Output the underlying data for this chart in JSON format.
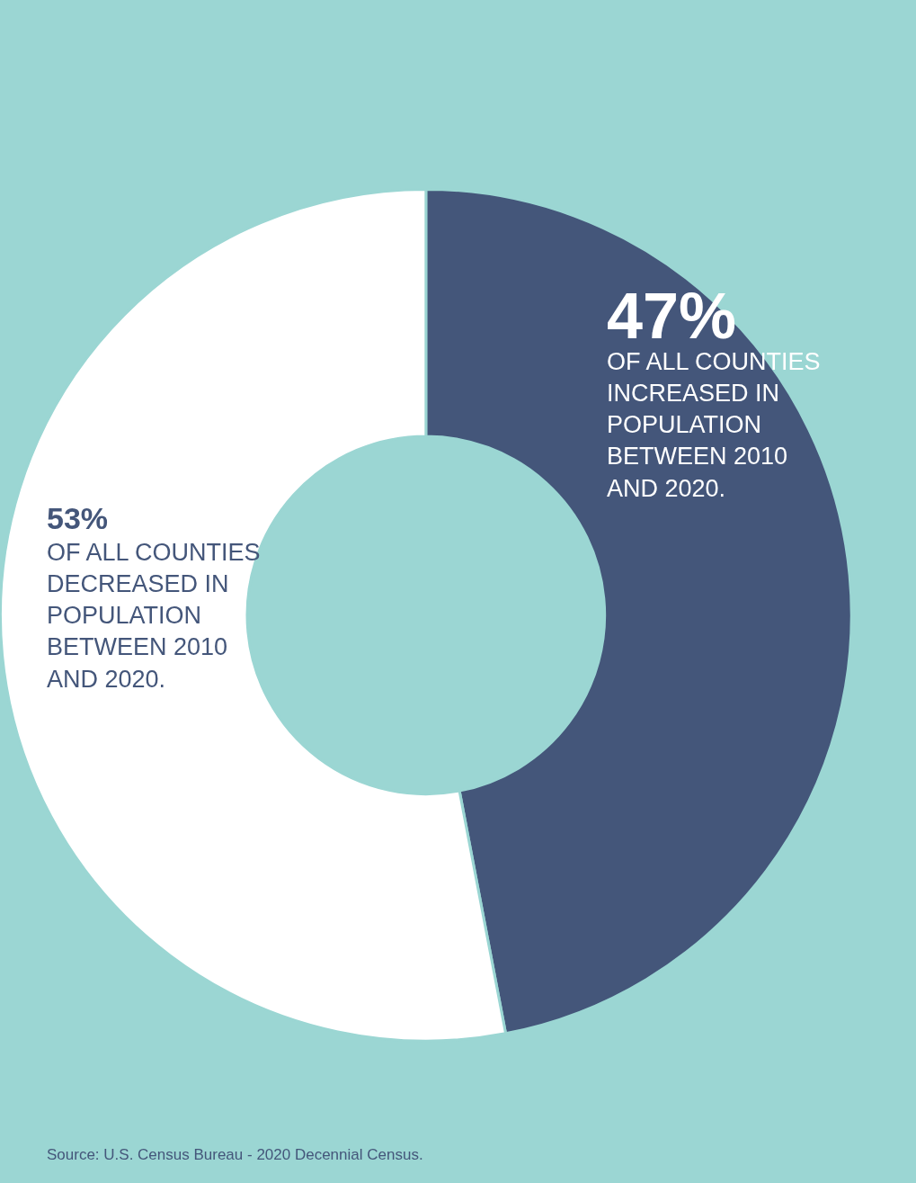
{
  "chart_data": {
    "type": "donut",
    "categories": [
      "OF ALL COUNTIES INCREASED IN POPULATION BETWEEN 2010 AND 2020.",
      "OF ALL COUNTIES DECREASED IN POPULATION BETWEEN 2010 AND 2020."
    ],
    "values": [
      47,
      53
    ],
    "value_labels": [
      "47%",
      "53%"
    ],
    "colors": [
      "#44567a",
      "#ffffff"
    ],
    "annotations": [
      "Source: U.S. Census Bureau - 2020 Decennial Census."
    ],
    "legend": false
  }
}
